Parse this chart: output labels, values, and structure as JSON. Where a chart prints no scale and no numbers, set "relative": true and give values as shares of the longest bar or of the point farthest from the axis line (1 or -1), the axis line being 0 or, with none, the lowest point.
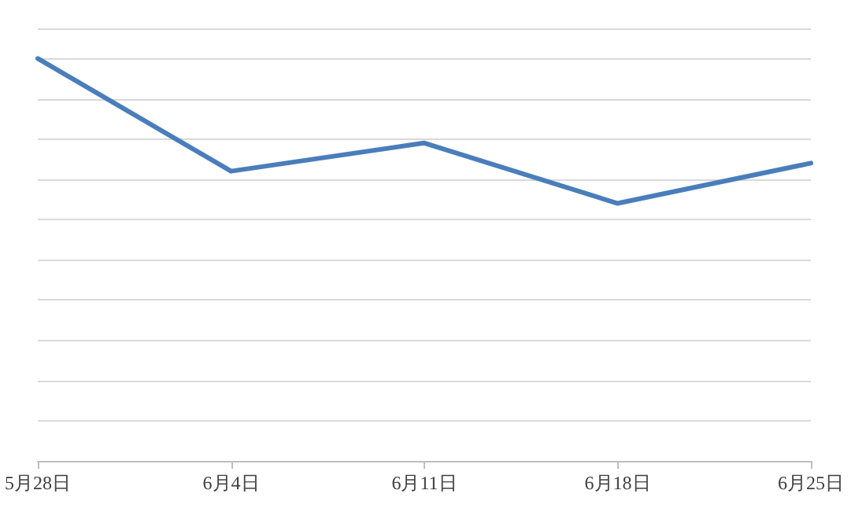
{
  "chart_data": {
    "type": "line",
    "relative": true,
    "categories": [
      "5月28日",
      "6月4日",
      "6月11日",
      "6月18日",
      "6月25日"
    ],
    "series": [
      {
        "color": "#4a7ebb",
        "values": [
          1,
          0.72,
          0.79,
          0.64,
          0.74
        ]
      }
    ],
    "grid": "y",
    "marker": "none",
    "line_style": "solid"
  }
}
